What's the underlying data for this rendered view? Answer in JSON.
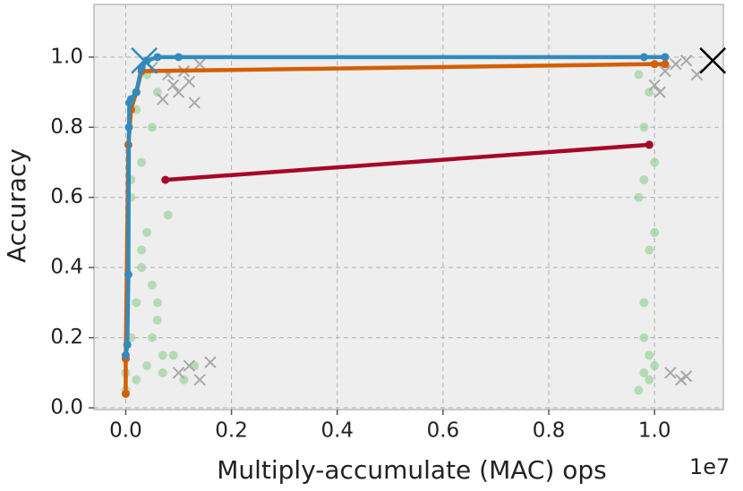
{
  "chart_data": {
    "type": "scatter",
    "xlabel": "Multiply-accumulate (MAC) ops",
    "ylabel": "Accuracy",
    "x_offset_label": "1e7",
    "xlim": [
      -0.06,
      1.13
    ],
    "ylim": [
      -0.005,
      1.15
    ],
    "xticks": [
      {
        "value": 0,
        "label": "0.0"
      },
      {
        "value": 0.2,
        "label": "0.2"
      },
      {
        "value": 0.4,
        "label": "0.4"
      },
      {
        "value": 0.6,
        "label": "0.6"
      },
      {
        "value": 0.8,
        "label": "0.8"
      },
      {
        "value": 1,
        "label": "1.0"
      }
    ],
    "yticks": [
      {
        "value": 0,
        "label": "0.0"
      },
      {
        "value": 0.2,
        "label": "0.2"
      },
      {
        "value": 0.4,
        "label": "0.4"
      },
      {
        "value": 0.6,
        "label": "0.6"
      },
      {
        "value": 0.8,
        "label": "0.8"
      },
      {
        "value": 1,
        "label": "1.0"
      }
    ],
    "grid": true,
    "series": [
      {
        "style": "dots",
        "color": "#8ecf8f",
        "x": [
          0.0,
          0.01,
          0.02,
          0.03,
          0.04,
          0.05,
          0.06,
          0.07,
          0.08,
          0.01,
          0.03,
          0.05,
          0.02,
          0.04,
          0.06,
          0.0,
          0.02,
          0.04,
          0.07,
          0.09,
          0.11,
          0.13,
          0.03,
          0.05,
          0.01,
          0.06,
          0.02,
          0.97,
          0.98,
          0.99,
          1.0,
          0.98,
          0.99,
          0.97,
          1.0,
          0.98,
          0.99,
          0.97,
          1.0,
          0.98,
          0.99,
          0.99,
          0.98
        ],
        "values": [
          0.1,
          0.2,
          0.3,
          0.45,
          0.5,
          0.35,
          0.25,
          0.15,
          0.55,
          0.6,
          0.7,
          0.8,
          0.9,
          0.95,
          0.9,
          0.05,
          0.08,
          0.12,
          0.1,
          0.15,
          0.08,
          0.12,
          0.4,
          0.2,
          0.65,
          0.3,
          0.85,
          0.05,
          0.1,
          0.15,
          0.12,
          0.3,
          0.45,
          0.6,
          0.7,
          0.8,
          0.9,
          0.95,
          0.5,
          0.2,
          0.75,
          0.08,
          0.65
        ]
      },
      {
        "style": "cross",
        "color": "#a8a8a8",
        "x": [
          0.05,
          0.08,
          0.1,
          0.12,
          0.14,
          0.07,
          0.11,
          0.09,
          0.13,
          0.1,
          0.12,
          0.14,
          0.16,
          1.0,
          1.02,
          1.04,
          1.06,
          1.08,
          1.01,
          1.05,
          1.03,
          1.06
        ],
        "values": [
          0.97,
          0.95,
          0.9,
          0.93,
          0.98,
          0.88,
          0.96,
          0.92,
          0.87,
          0.1,
          0.12,
          0.08,
          0.13,
          0.92,
          0.96,
          0.98,
          0.99,
          0.95,
          0.9,
          0.08,
          0.1,
          0.09
        ]
      },
      {
        "style": "line",
        "color": "#a60628",
        "x": [
          0.075,
          0.99
        ],
        "values": [
          0.65,
          0.75
        ]
      },
      {
        "style": "line",
        "color": "#d55e00",
        "x": [
          0.0,
          0.0,
          0.005,
          0.01,
          0.02,
          0.03,
          1.0,
          1.02
        ],
        "values": [
          0.04,
          0.14,
          0.75,
          0.85,
          0.9,
          0.96,
          0.98,
          0.98
        ]
      },
      {
        "style": "line",
        "color": "#348abd",
        "x": [
          0.0,
          0.003,
          0.005,
          0.006,
          0.007,
          0.01,
          0.02,
          0.03,
          0.04,
          0.06,
          0.1,
          0.98,
          1.02
        ],
        "values": [
          0.15,
          0.18,
          0.38,
          0.8,
          0.87,
          0.88,
          0.9,
          0.97,
          0.99,
          1.0,
          1.0,
          1.0,
          1.0
        ]
      },
      {
        "style": "big-cross",
        "color": "#348abd",
        "x": [
          0.035
        ],
        "values": [
          0.99
        ]
      },
      {
        "style": "big-cross",
        "color": "#000000",
        "x": [
          1.11
        ],
        "values": [
          0.99
        ]
      }
    ]
  }
}
